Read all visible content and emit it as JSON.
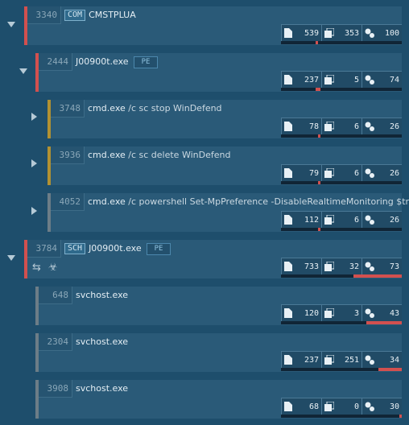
{
  "colors": {
    "background": "#1e4e6c",
    "card": "#2a5a78",
    "accent_red": "#d2504f",
    "accent_yellow": "#b19132",
    "accent_gray": "#6c7d87"
  },
  "stat_icons": [
    "file-icon",
    "registry-icon",
    "network-icon"
  ],
  "processes": [
    {
      "pid": "3340",
      "badge": "COM",
      "name": "CMSTPLUA",
      "args": "",
      "pe": "",
      "file": "539",
      "registry": "353",
      "network": "100",
      "expanded": true
    },
    {
      "pid": "2444",
      "badge": "",
      "name": "J00900t.exe",
      "args": "",
      "pe": "PE",
      "file": "237",
      "registry": "5",
      "network": "74",
      "expanded": true
    },
    {
      "pid": "3748",
      "badge": "",
      "name": "cmd.exe",
      "args": "/c sc stop WinDefend",
      "pe": "",
      "file": "78",
      "registry": "6",
      "network": "26",
      "expanded": false
    },
    {
      "pid": "3936",
      "badge": "",
      "name": "cmd.exe",
      "args": "/c sc delete WinDefend",
      "pe": "",
      "file": "79",
      "registry": "6",
      "network": "26",
      "expanded": false
    },
    {
      "pid": "4052",
      "badge": "",
      "name": "cmd.exe",
      "args": "/c powershell Set-MpPreference -DisableRealtimeMonitoring $true",
      "pe": "",
      "file": "112",
      "registry": "6",
      "network": "26",
      "expanded": false
    },
    {
      "pid": "3784",
      "badge": "SCH",
      "name": "J00900t.exe",
      "args": "",
      "pe": "PE",
      "file": "733",
      "registry": "32",
      "network": "73",
      "expanded": true,
      "extra_icons": [
        "arrows-icon",
        "biohazard-icon"
      ]
    },
    {
      "pid": "648",
      "badge": "",
      "name": "svchost.exe",
      "args": "",
      "pe": "",
      "file": "120",
      "registry": "3",
      "network": "43"
    },
    {
      "pid": "2304",
      "badge": "",
      "name": "svchost.exe",
      "args": "",
      "pe": "",
      "file": "237",
      "registry": "251",
      "network": "34"
    },
    {
      "pid": "3908",
      "badge": "",
      "name": "svchost.exe",
      "args": "",
      "pe": "",
      "file": "68",
      "registry": "0",
      "network": "30"
    }
  ]
}
